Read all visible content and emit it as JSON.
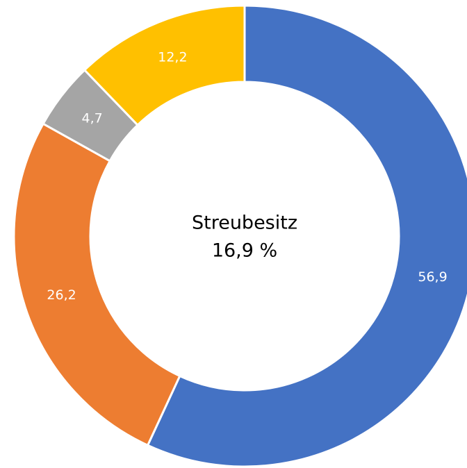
{
  "chart_data": {
    "type": "donut",
    "values": [
      56.9,
      26.2,
      4.7,
      12.2
    ],
    "value_labels": [
      "56,9",
      "26,2",
      "4,7",
      "12,2"
    ],
    "colors": [
      "#4472c4",
      "#ed7d31",
      "#a5a5a5",
      "#ffc000"
    ],
    "annotations": [
      "Streubesitz",
      "16,9 %"
    ]
  }
}
